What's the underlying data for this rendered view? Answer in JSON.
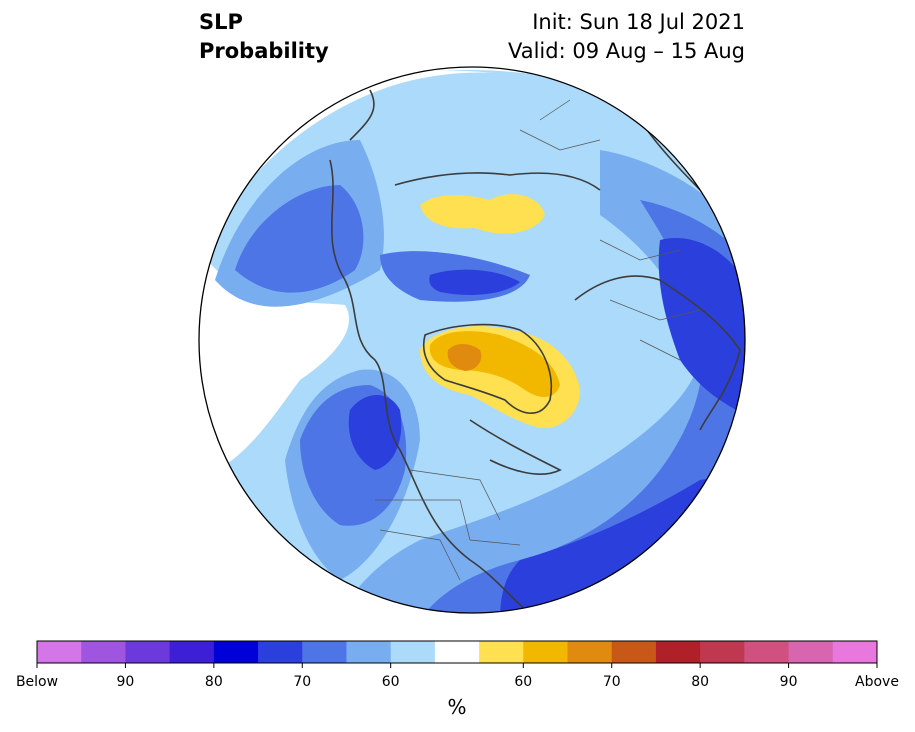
{
  "title": {
    "variable": "SLP",
    "product": "Probability",
    "init": "Init: Sun 18 Jul 2021",
    "valid": "Valid: 09 Aug – 15 Aug"
  },
  "colorbar": {
    "unit": "%",
    "colors": [
      "#d475e8",
      "#a055e0",
      "#6c3adc",
      "#3e1fd8",
      "#0000d8",
      "#2a3fdc",
      "#4e75e6",
      "#78aef0",
      "#acdafb",
      "#ffffff",
      "#ffe050",
      "#f2b800",
      "#e08a10",
      "#c85818",
      "#b02028",
      "#c03850",
      "#d05080",
      "#d865b0",
      "#e878dd"
    ],
    "tick_labels": [
      "Below",
      "90",
      "80",
      "70",
      "60",
      "60",
      "70",
      "80",
      "90",
      "Above"
    ]
  },
  "map_layers": {
    "ocean_fill": "#fefffe",
    "coastline_color": "#3c3c3c",
    "border_color": "#555555"
  }
}
